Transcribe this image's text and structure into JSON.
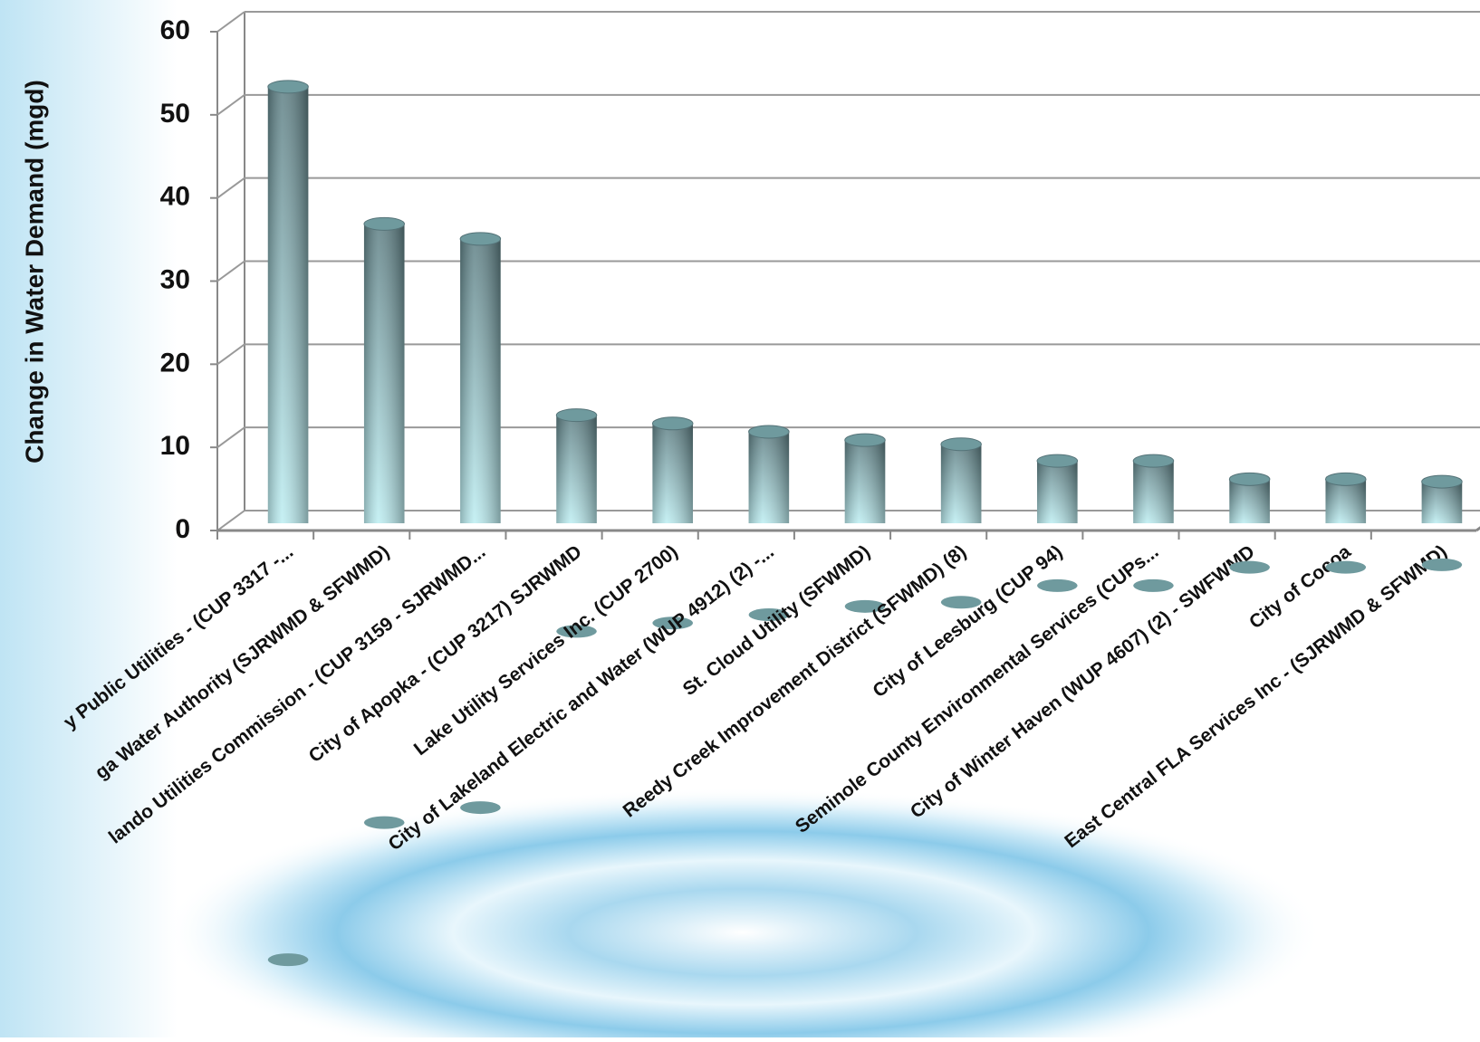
{
  "chart_data": {
    "type": "bar",
    "y_label": "Change in Water Demand (mgd)",
    "categories": [
      "y Public Utilities - (CUP 3317 -...",
      "ga Water Authority (SJRWMD & SFWMD)",
      "lando Utilities Commission - (CUP 3159 - SJRWMD...",
      "City of Apopka - (CUP 3217) SJRWMD",
      "Lake Utility Services Inc. (CUP 2700)",
      "City of Lakeland Electric and Water (WUP 4912) (2) -...",
      "St. Cloud Utility (SFWMD)",
      "Reedy Creek Improvement District (SFWMD) (8)",
      "City of Leesburg (CUP 94)",
      "Seminole County Environmental Services (CUPs...",
      "City of Winter Haven (WUP 4607) (2) - SWFWMD",
      "City of Cocoa",
      "East Central FLA Services Inc - (SJRWMD & SFWMD)"
    ],
    "values": [
      52.5,
      36,
      34.2,
      13,
      12,
      11,
      10,
      9.5,
      7.5,
      7.5,
      5.3,
      5.3,
      5.0
    ],
    "color": "#6f9a9e",
    "ylim": [
      0,
      60
    ],
    "yticks": [
      0,
      10,
      20,
      30,
      40,
      50,
      60
    ],
    "grid": true
  }
}
